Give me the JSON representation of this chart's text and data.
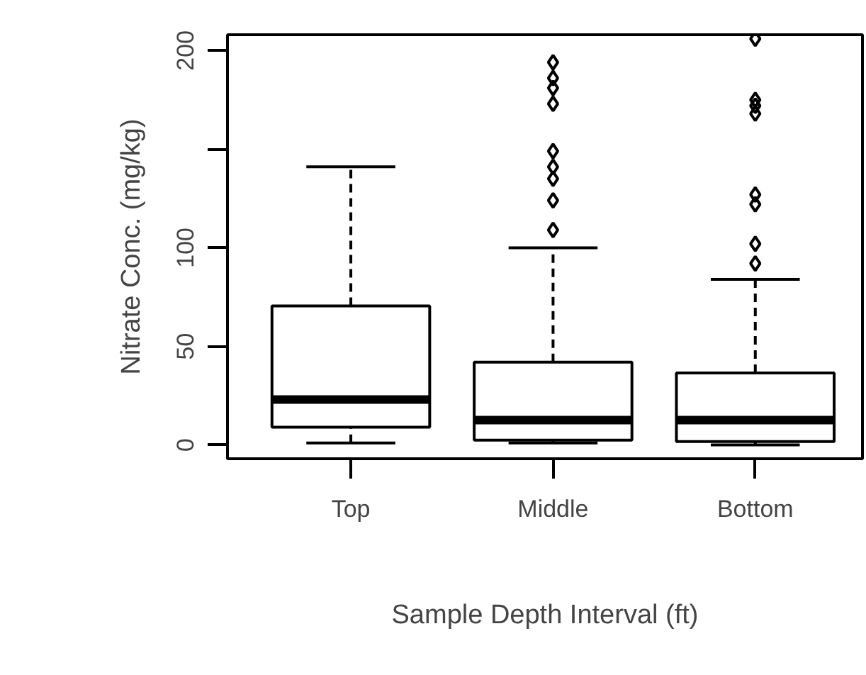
{
  "chart_data": {
    "type": "box",
    "xlabel": "Sample Depth Interval (ft)",
    "ylabel": "Nitrate Conc. (mg/kg)",
    "categories": [
      "Top",
      "Middle",
      "Bottom"
    ],
    "boxes": [
      {
        "low": 1,
        "q1": 9,
        "median": 23,
        "q3": 70.5,
        "high": 141
      },
      {
        "low": 1,
        "q1": 2.4,
        "median": 12.6,
        "q3": 42,
        "high": 100,
        "outliers": [
          194,
          186,
          181,
          173,
          149,
          141,
          135,
          124,
          109
        ]
      },
      {
        "low": 0,
        "q1": 1.7,
        "median": 12.6,
        "q3": 36.5,
        "high": 84,
        "outliers": [
          206,
          175,
          172,
          168,
          127,
          122,
          102,
          92
        ]
      }
    ],
    "ylim": [
      -7,
      208
    ],
    "yticks": [
      0,
      50,
      100,
      {
        "value": 150,
        "label": null
      },
      200
    ],
    "grid": false
  }
}
